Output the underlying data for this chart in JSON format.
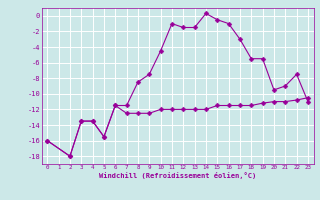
{
  "xlabel": "Windchill (Refroidissement éolien,°C)",
  "hours": [
    0,
    1,
    2,
    3,
    4,
    5,
    6,
    7,
    8,
    9,
    10,
    11,
    12,
    13,
    14,
    15,
    16,
    17,
    18,
    19,
    20,
    21,
    22,
    23
  ],
  "line1": [
    -16,
    null,
    -18,
    -13.5,
    -13.5,
    -15.5,
    -11.5,
    -11.5,
    -8.5,
    -7.5,
    -4.5,
    -1.0,
    -1.5,
    -1.5,
    0.3,
    -0.5,
    -1.0,
    -3.0,
    -5.5,
    -5.5,
    -9.5,
    -9.0,
    -7.5,
    -11.0
  ],
  "line2": [
    -16,
    null,
    -18,
    -13.5,
    -13.5,
    -15.5,
    -11.5,
    -12.5,
    -12.5,
    -12.5,
    -12.0,
    -12.0,
    -12.0,
    -12.0,
    -12.0,
    -11.5,
    -11.5,
    -11.5,
    -11.5,
    -11.2,
    -11.0,
    -11.0,
    -10.8,
    -10.5
  ],
  "line_color": "#990099",
  "bg_color": "#cce8e8",
  "grid_color": "#ffffff",
  "ylim": [
    -19,
    1
  ],
  "yticks": [
    0,
    -2,
    -4,
    -6,
    -8,
    -10,
    -12,
    -14,
    -16,
    -18
  ],
  "markersize": 2.5
}
